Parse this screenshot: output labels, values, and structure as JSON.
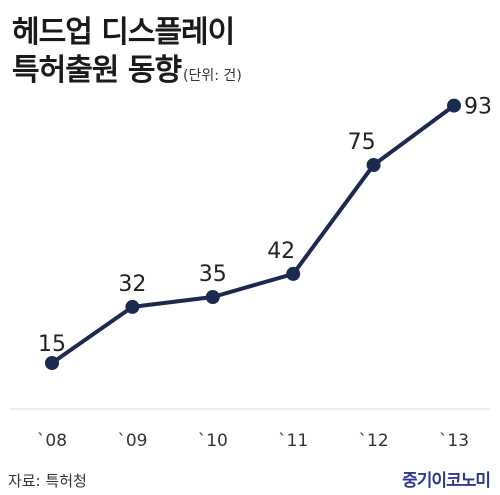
{
  "title": {
    "line1": "헤드업 디스플레이",
    "line2": "특허출원 동향",
    "unit": "(단위: 건)"
  },
  "source": "자료: 특허청",
  "brand": "중기이코노미",
  "colors": {
    "line": "#1b2a4e",
    "axis": "#dddddd",
    "brand": "#2b3a8f"
  },
  "chart_data": {
    "type": "line",
    "categories": [
      "`08",
      "`09",
      "`10",
      "`11",
      "`12",
      "`13"
    ],
    "values": [
      15,
      32,
      35,
      42,
      75,
      93
    ],
    "title": "헤드업 디스플레이 특허출원 동향",
    "xlabel": "",
    "ylabel": "",
    "unit": "(단위: 건)",
    "ylim": [
      0,
      100
    ],
    "grid": false,
    "legend": "none"
  }
}
